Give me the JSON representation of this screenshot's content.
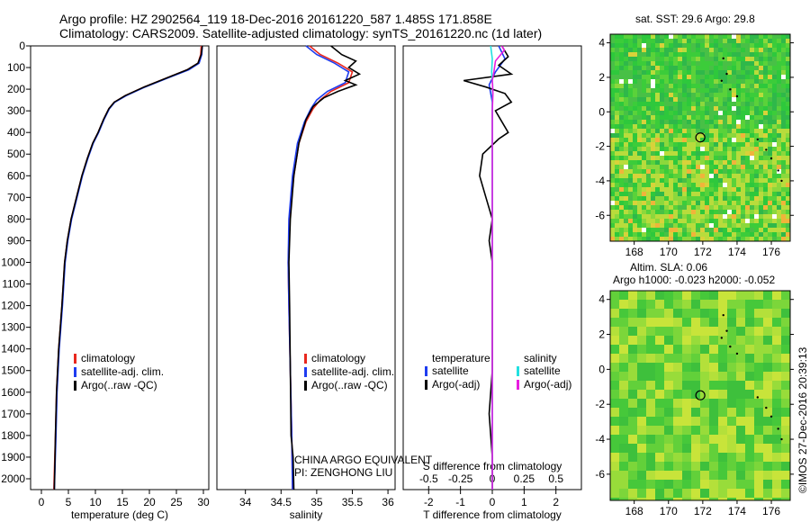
{
  "header": {
    "line1": "Argo profile: HZ 2902564_119 18-Dec-2016 20161220_587 1.485S 171.858E",
    "line2": "Climatology: CARS2009. Satellite-adjusted climatology: synTS_20161220.nc (1d later)"
  },
  "colors": {
    "climatology": "#e8281e",
    "satellite": "#1e3cf0",
    "argo": "#000000",
    "sat_salinity": "#22e0e0",
    "argo_salinity": "#e81ee0"
  },
  "legend": {
    "climatology": "climatology",
    "satellite_clim": "satellite-adj. clim.",
    "argo_raw": "Argo(..raw -QC)",
    "temperature": "temperature",
    "salinity": "salinity",
    "satellite": "satellite",
    "argo_adj": "Argo(-adj)"
  },
  "float_info": {
    "line1": "CHINA ARGO EQUIVALENT",
    "line2": "PI: ZENGHONG LIU"
  },
  "diff_top_label": "S difference from climatology",
  "map1_title": "sat. SST: 29.6 Argo: 29.8",
  "map2_title_line1": "Altim. SLA: 0.06",
  "map2_title_line2": "Argo h1000: -0.023 h2000: -0.052",
  "credit": "©IMOS 27-Dec-2016 20:39:13",
  "chart_data": [
    {
      "type": "line",
      "xlabel": "temperature (deg C)",
      "ylabel": "",
      "xlim": [
        -2,
        31
      ],
      "ylim": [
        2050,
        0
      ],
      "xticks": [
        0,
        5,
        10,
        15,
        20,
        25,
        30
      ],
      "yticks": [
        0,
        100,
        200,
        300,
        400,
        500,
        600,
        700,
        800,
        900,
        1000,
        1100,
        1200,
        1300,
        1400,
        1500,
        1600,
        1700,
        1800,
        1900,
        2000
      ],
      "series": [
        {
          "name": "climatology",
          "color": "#e8281e",
          "points": [
            [
              29.6,
              0
            ],
            [
              29.5,
              40
            ],
            [
              29.0,
              80
            ],
            [
              27.0,
              110
            ],
            [
              23.0,
              150
            ],
            [
              19.0,
              190
            ],
            [
              15.5,
              230
            ],
            [
              13.5,
              260
            ],
            [
              12.5,
              290
            ],
            [
              11.5,
              340
            ],
            [
              10.5,
              400
            ],
            [
              9.5,
              450
            ],
            [
              8.5,
              520
            ],
            [
              7.5,
              600
            ],
            [
              6.5,
              700
            ],
            [
              5.5,
              800
            ],
            [
              4.8,
              900
            ],
            [
              4.3,
              1000
            ],
            [
              3.8,
              1200
            ],
            [
              3.2,
              1400
            ],
            [
              2.8,
              1600
            ],
            [
              2.6,
              1800
            ],
            [
              2.3,
              2050
            ]
          ]
        },
        {
          "name": "satellite-adj. clim.",
          "color": "#1e3cf0",
          "points": [
            [
              29.8,
              0
            ],
            [
              29.7,
              40
            ],
            [
              29.2,
              80
            ],
            [
              27.3,
              110
            ],
            [
              23.2,
              150
            ],
            [
              19.2,
              190
            ],
            [
              15.7,
              230
            ],
            [
              13.6,
              260
            ],
            [
              12.6,
              290
            ],
            [
              11.6,
              340
            ],
            [
              10.6,
              400
            ],
            [
              9.6,
              450
            ],
            [
              8.6,
              520
            ],
            [
              7.6,
              600
            ],
            [
              6.6,
              700
            ],
            [
              5.6,
              800
            ],
            [
              4.9,
              900
            ],
            [
              4.4,
              1000
            ],
            [
              3.9,
              1200
            ],
            [
              3.3,
              1400
            ],
            [
              2.9,
              1600
            ],
            [
              2.7,
              1800
            ],
            [
              2.4,
              2050
            ]
          ]
        },
        {
          "name": "Argo(..raw -QC)",
          "color": "#000000",
          "points": [
            [
              29.8,
              0
            ],
            [
              29.6,
              40
            ],
            [
              29.0,
              80
            ],
            [
              27.0,
              110
            ],
            [
              23.0,
              150
            ],
            [
              19.0,
              190
            ],
            [
              15.5,
              230
            ],
            [
              13.5,
              260
            ],
            [
              12.5,
              290
            ],
            [
              11.5,
              340
            ],
            [
              10.5,
              400
            ],
            [
              9.5,
              450
            ],
            [
              8.5,
              520
            ],
            [
              7.5,
              600
            ],
            [
              6.5,
              700
            ],
            [
              5.5,
              800
            ],
            [
              4.8,
              900
            ],
            [
              4.3,
              1000
            ],
            [
              3.8,
              1200
            ],
            [
              3.2,
              1400
            ],
            [
              2.8,
              1600
            ],
            [
              2.6,
              1800
            ],
            [
              2.4,
              2050
            ]
          ]
        }
      ]
    },
    {
      "type": "line",
      "xlabel": "salinity",
      "ylabel": "",
      "xlim": [
        33.6,
        36.1
      ],
      "ylim": [
        2050,
        0
      ],
      "xticks": [
        34,
        34.5,
        35,
        35.5,
        36
      ],
      "yticks": [],
      "series": [
        {
          "name": "climatology",
          "color": "#e8281e",
          "points": [
            [
              34.9,
              0
            ],
            [
              35.05,
              40
            ],
            [
              35.3,
              80
            ],
            [
              35.5,
              120
            ],
            [
              35.45,
              170
            ],
            [
              35.2,
              210
            ],
            [
              35.05,
              250
            ],
            [
              34.95,
              290
            ],
            [
              34.85,
              350
            ],
            [
              34.75,
              450
            ],
            [
              34.68,
              600
            ],
            [
              34.62,
              800
            ],
            [
              34.6,
              1000
            ],
            [
              34.61,
              1200
            ],
            [
              34.63,
              1500
            ],
            [
              34.65,
              1800
            ],
            [
              34.66,
              2050
            ]
          ]
        },
        {
          "name": "satellite-adj. clim.",
          "color": "#1e3cf0",
          "points": [
            [
              34.85,
              0
            ],
            [
              35.0,
              40
            ],
            [
              35.25,
              80
            ],
            [
              35.45,
              120
            ],
            [
              35.4,
              170
            ],
            [
              35.15,
              210
            ],
            [
              35.0,
              250
            ],
            [
              34.92,
              290
            ],
            [
              34.83,
              350
            ],
            [
              34.73,
              450
            ],
            [
              34.66,
              600
            ],
            [
              34.61,
              800
            ],
            [
              34.6,
              1000
            ],
            [
              34.61,
              1200
            ],
            [
              34.63,
              1500
            ],
            [
              34.65,
              1800
            ],
            [
              34.66,
              2050
            ]
          ]
        },
        {
          "name": "Argo(..raw -QC)",
          "color": "#000000",
          "points": [
            [
              35.2,
              0
            ],
            [
              35.35,
              40
            ],
            [
              35.55,
              70
            ],
            [
              35.45,
              100
            ],
            [
              35.6,
              130
            ],
            [
              35.4,
              160
            ],
            [
              35.55,
              180
            ],
            [
              35.3,
              210
            ],
            [
              35.1,
              240
            ],
            [
              34.95,
              280
            ],
            [
              34.85,
              340
            ],
            [
              34.75,
              450
            ],
            [
              34.68,
              600
            ],
            [
              34.63,
              800
            ],
            [
              34.61,
              1000
            ],
            [
              34.62,
              1200
            ],
            [
              34.63,
              1500
            ],
            [
              34.64,
              1800
            ],
            [
              34.67,
              1900
            ],
            [
              34.68,
              2050
            ]
          ]
        }
      ]
    },
    {
      "type": "line",
      "xlabel": "T difference from climatology",
      "top_xlabel": "S difference from climatology",
      "ylabel": "",
      "xlim": [
        -2.8,
        2.8
      ],
      "ylim": [
        2050,
        0
      ],
      "xticks": [
        -2,
        -1,
        0,
        1,
        2
      ],
      "top_xticks": [
        -0.5,
        -0.25,
        0,
        0.25,
        0.5
      ],
      "series": [
        {
          "name": "temperature satellite",
          "color": "#1e3cf0",
          "points": [
            [
              0.2,
              0
            ],
            [
              0.4,
              60
            ],
            [
              0.1,
              120
            ],
            [
              -0.1,
              180
            ],
            [
              0.0,
              260
            ],
            [
              0.0,
              400
            ],
            [
              0.0,
              800
            ],
            [
              0.0,
              1200
            ],
            [
              0.0,
              1600
            ],
            [
              0.0,
              2050
            ]
          ]
        },
        {
          "name": "temperature Argo(-adj)",
          "color": "#000000",
          "points": [
            [
              0.3,
              0
            ],
            [
              0.5,
              50
            ],
            [
              0.2,
              90
            ],
            [
              0.6,
              130
            ],
            [
              -0.9,
              160
            ],
            [
              -0.2,
              190
            ],
            [
              0.4,
              220
            ],
            [
              0.6,
              260
            ],
            [
              0.1,
              300
            ],
            [
              0.3,
              350
            ],
            [
              0.5,
              400
            ],
            [
              0.2,
              430
            ],
            [
              -0.3,
              500
            ],
            [
              -0.4,
              600
            ],
            [
              -0.2,
              700
            ],
            [
              0.0,
              800
            ],
            [
              -0.1,
              900
            ],
            [
              0.0,
              1000
            ],
            [
              0.0,
              1200
            ],
            [
              0.0,
              1500
            ],
            [
              -0.1,
              1700
            ],
            [
              0.0,
              1900
            ],
            [
              0.0,
              2050
            ]
          ]
        },
        {
          "name": "salinity satellite",
          "color": "#22e0e0",
          "points": [
            [
              -0.05,
              0
            ],
            [
              0.0,
              60
            ],
            [
              -0.02,
              120
            ],
            [
              0.01,
              180
            ],
            [
              0.0,
              300
            ],
            [
              0.0,
              600
            ],
            [
              0.0,
              1000
            ],
            [
              0.0,
              1500
            ],
            [
              0.0,
              2050
            ]
          ]
        },
        {
          "name": "salinity Argo(-adj)",
          "color": "#e81ee0",
          "points": [
            [
              0.3,
              0
            ],
            [
              0.38,
              20
            ],
            [
              0.1,
              70
            ],
            [
              0.05,
              120
            ],
            [
              0.0,
              160
            ],
            [
              0.02,
              220
            ],
            [
              0.0,
              300
            ],
            [
              0.0,
              600
            ],
            [
              0.0,
              1000
            ],
            [
              0.0,
              1500
            ],
            [
              0.0,
              2050
            ]
          ]
        }
      ]
    }
  ],
  "maps": [
    {
      "xticks": [
        168,
        170,
        172,
        174,
        176
      ],
      "yticks": [
        4,
        2,
        0,
        -2,
        -4,
        -6
      ],
      "xlim": [
        166.6,
        177.1
      ],
      "ylim": [
        -7.5,
        4.5
      ],
      "marker": [
        171.858,
        -1.485
      ]
    },
    {
      "xticks": [
        168,
        170,
        172,
        174,
        176
      ],
      "yticks": [
        4,
        2,
        0,
        -2,
        -4,
        -6
      ],
      "xlim": [
        166.6,
        177.1
      ],
      "ylim": [
        -7.5,
        4.5
      ],
      "marker": [
        171.858,
        -1.485
      ]
    }
  ]
}
